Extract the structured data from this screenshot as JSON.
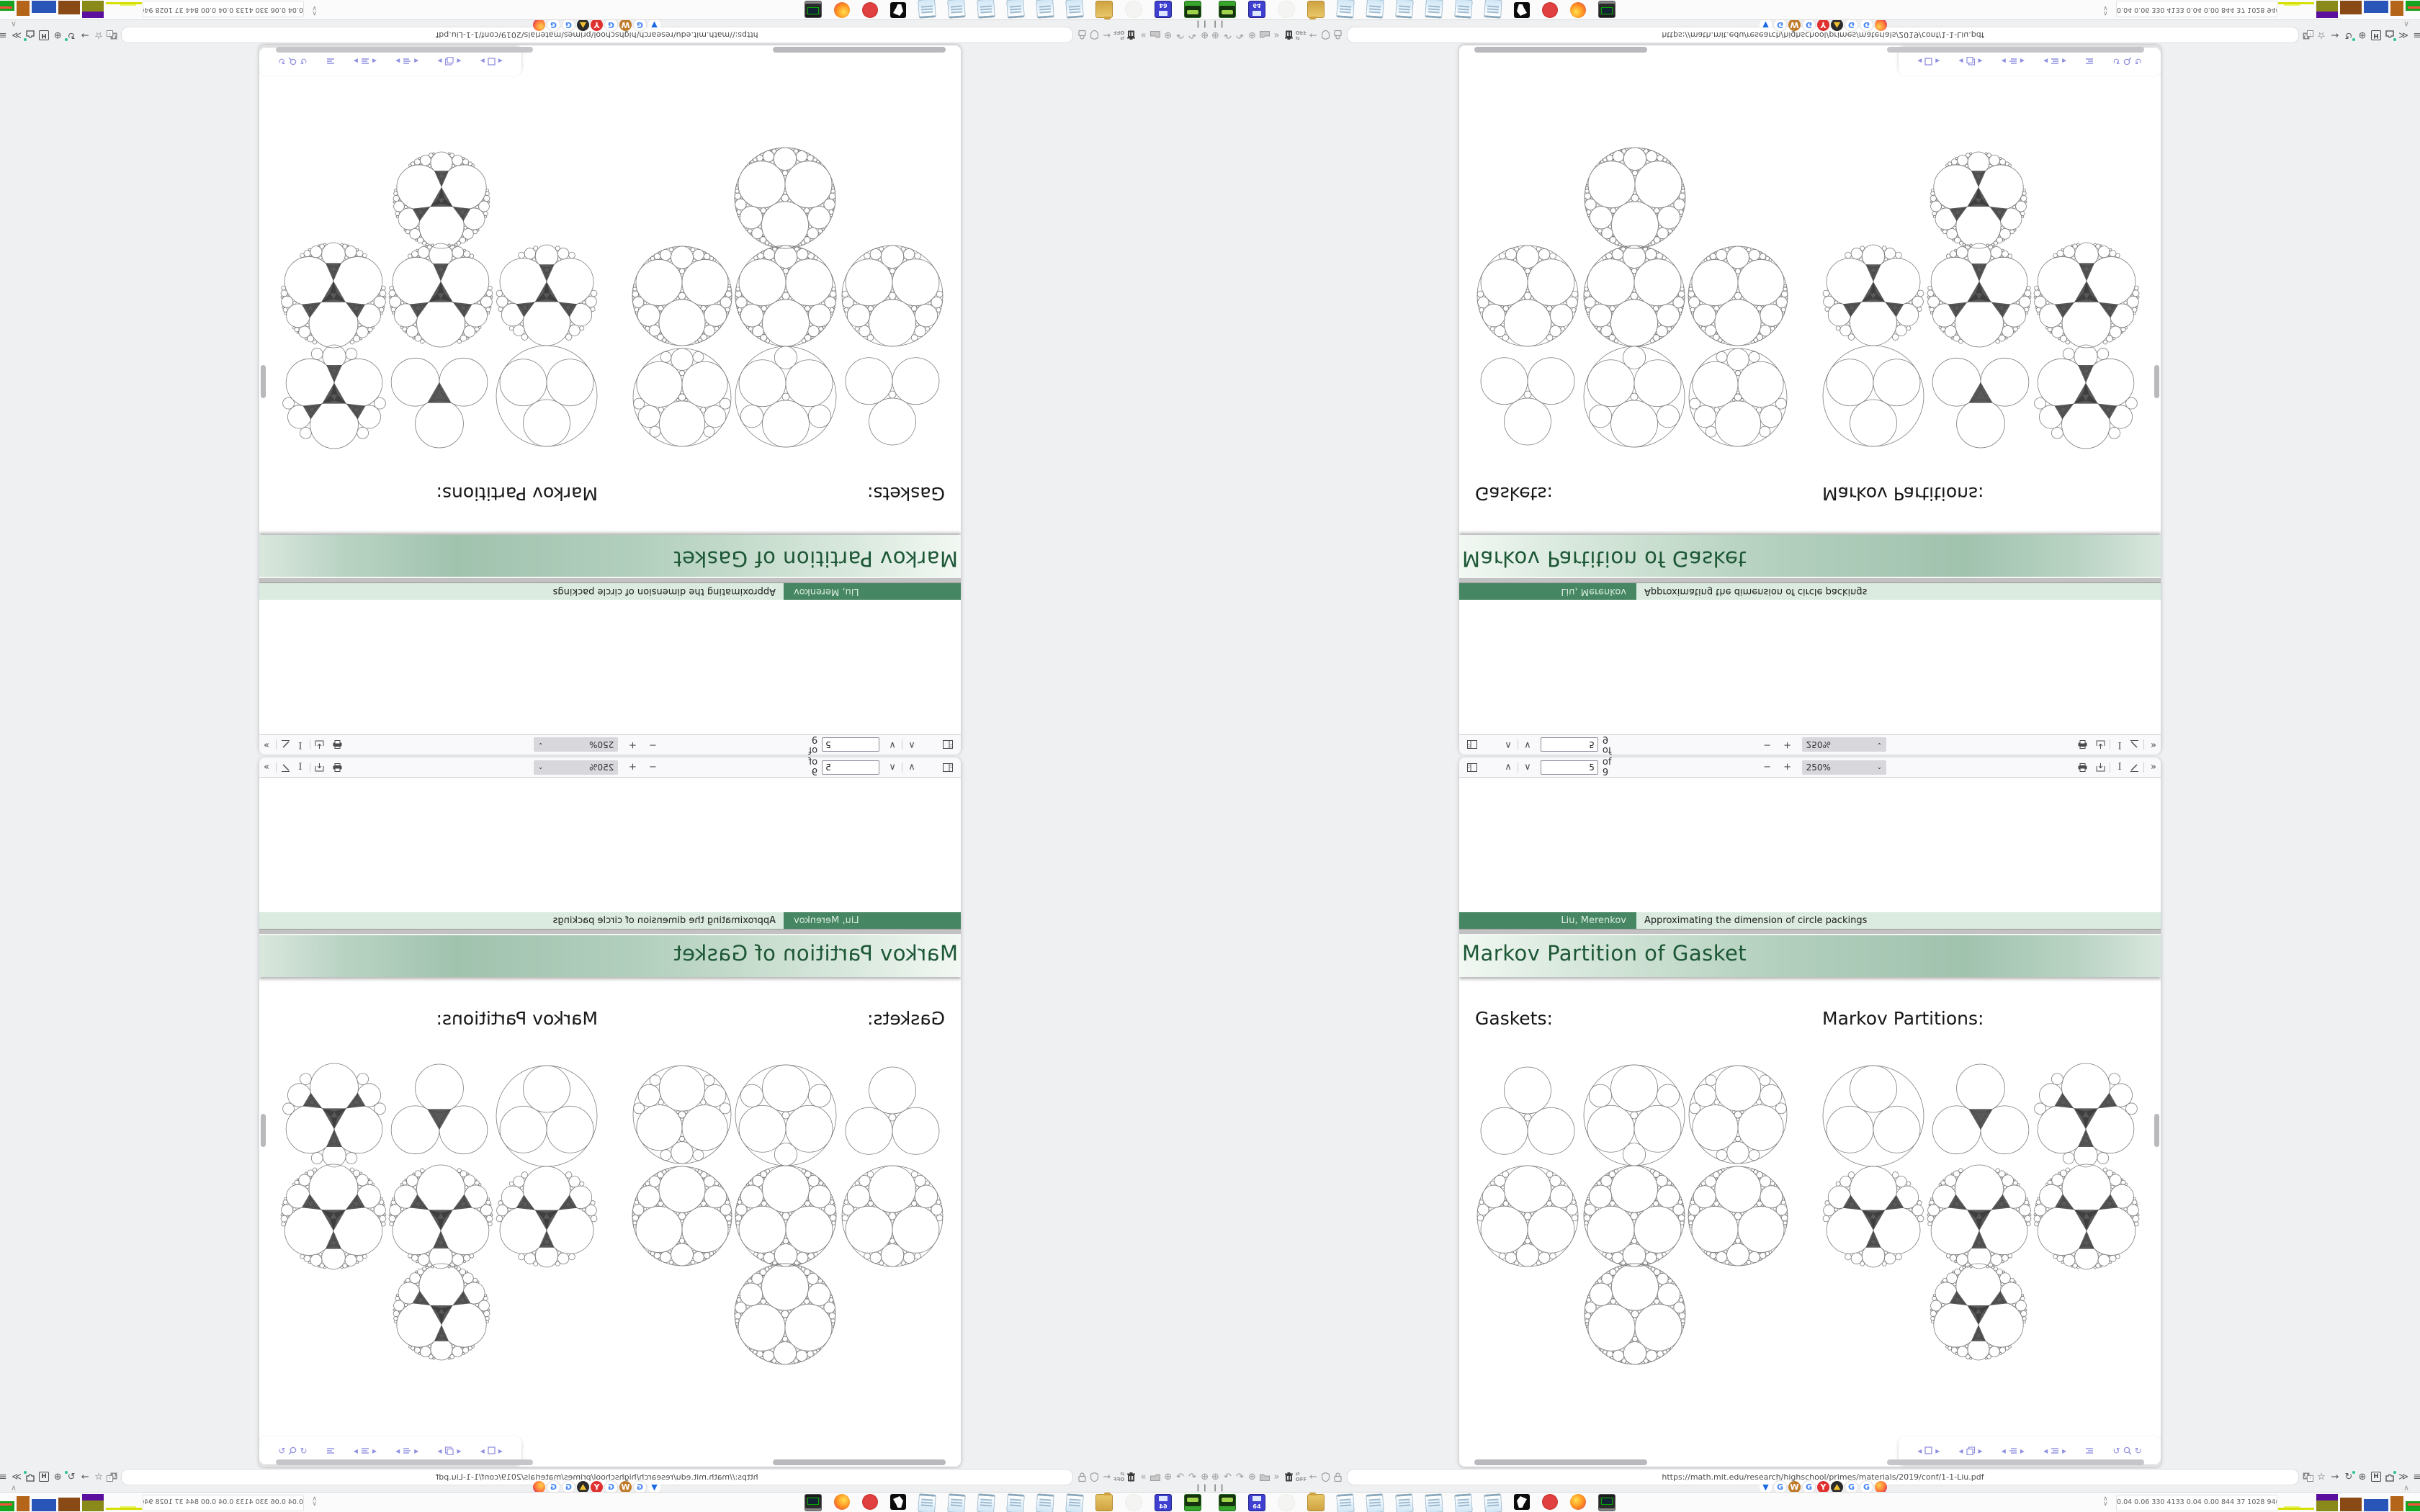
{
  "pdf_viewer": {
    "page_value": "5",
    "page_of_label": "of 9",
    "zoom_value": "250%",
    "toolbar_icons": [
      "sidebar-toggle",
      "page-up-chevron",
      "page-down-chevron",
      "zoom-out-minus",
      "zoom-in-plus",
      "print",
      "save-download",
      "text-select",
      "ink-pen",
      "more-tools-chevrons"
    ]
  },
  "slide": {
    "footline_author": "Liu, Merenkov",
    "footline_paper": "Approximating the dimension of circle packings",
    "frametitle": "Markov Partition of Gasket",
    "gaskets_label": "Gaskets:",
    "markov_label": "Markov Partitions:"
  },
  "browser": {
    "url": "https://math.mit.edu/research/highschool/primes/materials/2019/conf/1-1-Liu.pdf",
    "off_badge": "OFF",
    "ext_icons": [
      "globe",
      "undo-arrow",
      "redo-arrow",
      "globe",
      "folder",
      "double-chevron",
      "trash",
      "off-switch",
      "back-arrow",
      "shield",
      "lock"
    ],
    "right_icons": [
      "translate",
      "bookmark-star",
      "forward-arrow",
      "reload",
      "globe-dark",
      "h-box",
      "extension-puzzle",
      "more-chevrons",
      "hamburger-menu"
    ],
    "favicons": [
      "funnel-blue",
      "google-g",
      "medal-bronze",
      "google-g",
      "yandex-y",
      "photo-thumb",
      "google-g",
      "google-g",
      "firefox-orb"
    ]
  },
  "floating_toolbar": {
    "groups": [
      "page-square-nav",
      "pages-stack-nav",
      "outline-lines-nav",
      "outline-lines-nav-2",
      "lines-only",
      "undo-search-redo"
    ]
  },
  "taskbar": {
    "apps": [
      "media-player-green",
      "floppy-64",
      "faded-disc",
      "folder-yellow",
      "notepad",
      "notepad",
      "notepad",
      "notepad",
      "notepad",
      "notepad",
      "paw-black",
      "badge-red",
      "firefox",
      "monitor-green"
    ],
    "floppy_label": "64",
    "stats": "0.04 0.06 330 4133 0.04 0.00 844 37 1028 946 3.0 0.0 39 36 5879 8385"
  },
  "colors": {
    "footline_author_bg": "#478663",
    "footline_paper_bg": "#dcebe0",
    "frametitle_text": "#1c5736",
    "frametitle_mid": "#a0c3ae",
    "desktop_bg": "#eef0f2",
    "toolbar_bg": "#f9f9fb",
    "float_icon": "#8f8fe0"
  }
}
